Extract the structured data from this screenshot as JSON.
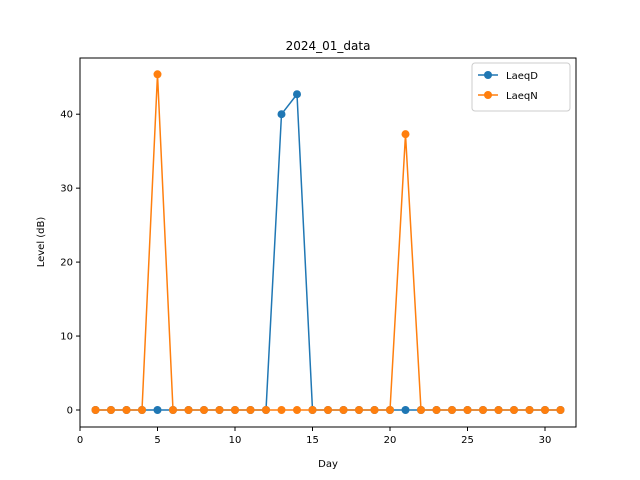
{
  "chart_data": {
    "type": "line",
    "title": "2024_01_data",
    "xlabel": "Day",
    "ylabel": "Level (dB)",
    "x": [
      1,
      2,
      3,
      4,
      5,
      6,
      7,
      8,
      9,
      10,
      11,
      12,
      13,
      14,
      15,
      16,
      17,
      18,
      19,
      20,
      21,
      22,
      23,
      24,
      25,
      26,
      27,
      28,
      29,
      30,
      31
    ],
    "xlim": [
      0,
      32
    ],
    "ylim": [
      -2.3,
      47.6
    ],
    "xticks": [
      0,
      5,
      10,
      15,
      20,
      25,
      30
    ],
    "yticks": [
      0,
      10,
      20,
      30,
      40
    ],
    "grid": false,
    "legend_position": "top-right",
    "series": [
      {
        "name": "LaeqD",
        "color": "#1f77b4",
        "values": [
          0,
          0,
          0,
          0,
          0,
          0,
          0,
          0,
          0,
          0,
          0,
          0,
          40.0,
          42.7,
          0,
          0,
          0,
          0,
          0,
          0,
          0,
          0,
          0,
          0,
          0,
          0,
          0,
          0,
          0,
          0,
          0
        ]
      },
      {
        "name": "LaeqN",
        "color": "#ff7f0e",
        "values": [
          0,
          0,
          0,
          0,
          45.4,
          0,
          0,
          0,
          0,
          0,
          0,
          0,
          0,
          0,
          0,
          0,
          0,
          0,
          0,
          0,
          37.3,
          0,
          0,
          0,
          0,
          0,
          0,
          0,
          0,
          0,
          0
        ]
      }
    ]
  }
}
